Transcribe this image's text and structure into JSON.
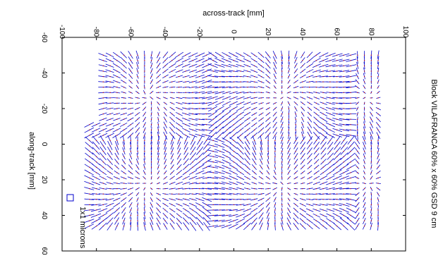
{
  "chart_data": {
    "type": "vector-field",
    "title": "Block VILAFRANCA 60% x 60% GSD 9 cm",
    "xlabel": "across-track [mm]",
    "ylabel": "along-track [mm]",
    "xlim": [
      -100,
      100
    ],
    "ylim": [
      -60,
      60
    ],
    "x_ticks": [
      -100,
      -80,
      -60,
      -40,
      -20,
      0,
      20,
      40,
      60,
      80,
      100
    ],
    "y_ticks": [
      -60,
      -40,
      -20,
      0,
      20,
      40,
      60
    ],
    "x_tick_labels": [
      "-100",
      "-80",
      "-60",
      "-40",
      "-20",
      "0",
      "20",
      "40",
      "60",
      "80",
      "100"
    ],
    "y_tick_labels": [
      "-60",
      "-40",
      "-20",
      "0",
      "20",
      "40",
      "60"
    ],
    "legend": {
      "label": "1x1 microns",
      "position": "bottom-left"
    },
    "grid": false,
    "vector_color": "#0000cc",
    "point_color": "#cc0000",
    "field": {
      "x_range": [
        -84,
        84
      ],
      "y_range": [
        -50,
        48
      ],
      "x_step": 4,
      "y_step": 3,
      "divide_x": [
        -15,
        72
      ],
      "divide_y": [
        -3
      ]
    }
  }
}
